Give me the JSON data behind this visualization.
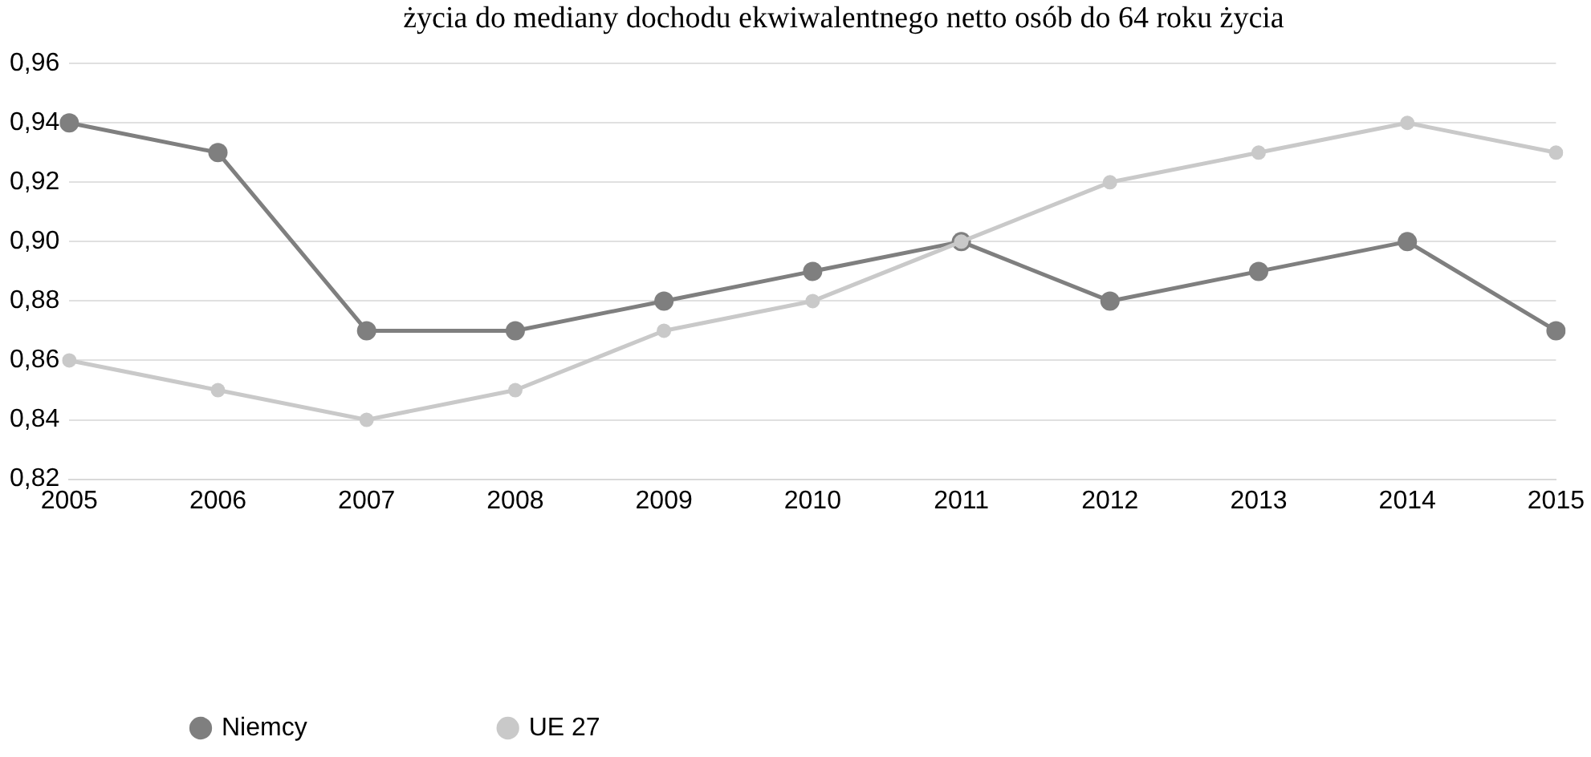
{
  "chart_data": {
    "type": "line",
    "title": "życia do mediany dochodu ekwiwalentnego netto osób do 64 roku życia",
    "categories": [
      "2005",
      "2006",
      "2007",
      "2008",
      "2009",
      "2010",
      "2011",
      "2012",
      "2013",
      "2014",
      "2015"
    ],
    "series": [
      {
        "name": "Niemcy",
        "color": "#7f7f7f",
        "values": [
          0.94,
          0.93,
          0.87,
          0.87,
          0.88,
          0.89,
          0.9,
          0.88,
          0.89,
          0.9,
          0.87
        ]
      },
      {
        "name": "UE 27",
        "color": "#c9c9c9",
        "values": [
          0.86,
          0.85,
          0.84,
          0.85,
          0.87,
          0.88,
          0.9,
          0.92,
          0.93,
          0.94,
          0.93
        ]
      }
    ],
    "ylim": [
      0.82,
      0.96
    ],
    "yticks": [
      {
        "value": 0.82,
        "label": "0,82"
      },
      {
        "value": 0.84,
        "label": "0,84"
      },
      {
        "value": 0.86,
        "label": "0,86"
      },
      {
        "value": 0.88,
        "label": "0,88"
      },
      {
        "value": 0.9,
        "label": "0,90"
      },
      {
        "value": 0.92,
        "label": "0,92"
      },
      {
        "value": 0.94,
        "label": "0,94"
      },
      {
        "value": 0.96,
        "label": "0,96"
      }
    ],
    "grid": "y",
    "legend": "bottom",
    "marker": "circle",
    "line_style": "solid"
  }
}
